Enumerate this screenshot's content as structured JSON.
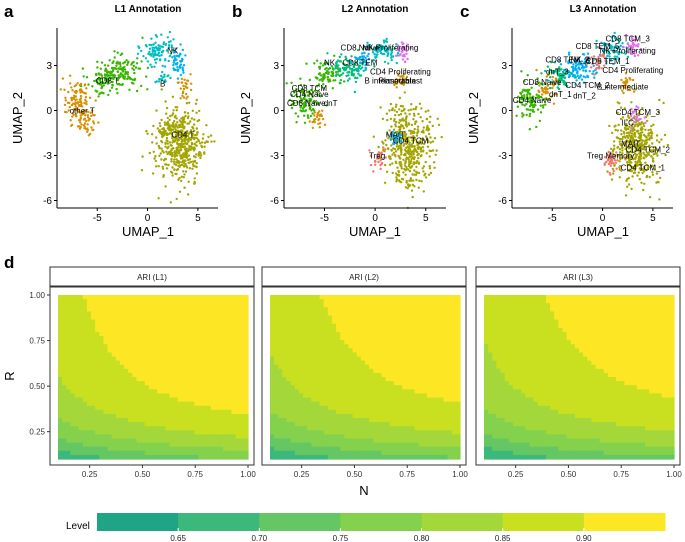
{
  "panel_letters": [
    "a",
    "b",
    "c",
    "d"
  ],
  "umap_axis": {
    "xlabel": "UMAP_1",
    "ylabel": "UMAP_2",
    "xticks": [
      -5,
      0,
      5
    ],
    "yticks": [
      -6,
      -3,
      0,
      3
    ]
  },
  "colors": {
    "cd4t": "#a3a500",
    "b": "#00bfc4",
    "nk": "#00b0f6",
    "cd8t": "#39b600",
    "othert": "#d89000",
    "mono": "#e76bf3",
    "treg": "#f8766d",
    "ccc": "#00bf7d"
  },
  "chart_data": [
    {
      "type": "scatter",
      "title": "L1 Annotation",
      "xlabel": "UMAP_1",
      "ylabel": "UMAP_2",
      "xlim": [
        -9,
        7
      ],
      "ylim": [
        -6.5,
        5.5
      ],
      "annotations": [
        {
          "text": "NK",
          "x": 2.5,
          "y": 3.8
        },
        {
          "text": "CD8 T",
          "x": -4.0,
          "y": 1.8
        },
        {
          "text": "B",
          "x": 1.5,
          "y": 1.6
        },
        {
          "text": "other T",
          "x": -6.5,
          "y": -0.2
        },
        {
          "text": "CD4 T",
          "x": 3.5,
          "y": -1.8
        }
      ]
    },
    {
      "type": "scatter",
      "title": "L2 Annotation",
      "xlabel": "UMAP_1",
      "ylabel": "UMAP_2",
      "xlim": [
        -9,
        7
      ],
      "ylim": [
        -6.5,
        5.5
      ],
      "annotations": [
        {
          "text": "CD8 Naive",
          "x": -1.5,
          "y": 4.0
        },
        {
          "text": "NK Proliferating",
          "x": 1.5,
          "y": 4.0
        },
        {
          "text": "NK",
          "x": -4.5,
          "y": 3.0
        },
        {
          "text": "CD8 TEM",
          "x": -1.5,
          "y": 3.0
        },
        {
          "text": "CD4 Proliferating",
          "x": 2.5,
          "y": 2.4
        },
        {
          "text": "B intermediate",
          "x": 1.5,
          "y": 1.8
        },
        {
          "text": "Plasmablast",
          "x": 2.5,
          "y": 1.8
        },
        {
          "text": "CD8 TCM",
          "x": -6.5,
          "y": 1.3
        },
        {
          "text": "CD4 Naive",
          "x": -6.5,
          "y": 0.9
        },
        {
          "text": "CD8 Naive",
          "x": -6.8,
          "y": 0.3
        },
        {
          "text": "dnT",
          "x": -4.4,
          "y": 0.3
        },
        {
          "text": "MAIT",
          "x": 2.0,
          "y": -1.8
        },
        {
          "text": "CD4 TCM",
          "x": 3.5,
          "y": -2.2
        },
        {
          "text": "Treg",
          "x": 0.2,
          "y": -3.2
        }
      ]
    },
    {
      "type": "scatter",
      "title": "L3 Annotation",
      "xlabel": "UMAP_1",
      "ylabel": "UMAP_2",
      "xlim": [
        -9,
        7
      ],
      "ylim": [
        -6.5,
        5.5
      ],
      "annotations": [
        {
          "text": "CD8 TCM_3",
          "x": 2.5,
          "y": 4.6
        },
        {
          "text": "CD8 TEM_5",
          "x": -0.5,
          "y": 4.1
        },
        {
          "text": "NK Proliferating",
          "x": 2.5,
          "y": 3.8
        },
        {
          "text": "CD8 TEM_2",
          "x": -3.5,
          "y": 3.2
        },
        {
          "text": "NK_4",
          "x": -2.2,
          "y": 3.2
        },
        {
          "text": "CD8 TEM_1",
          "x": 0.5,
          "y": 3.1
        },
        {
          "text": "CD4 Proliferating",
          "x": 3.0,
          "y": 2.5
        },
        {
          "text": "dnT_3",
          "x": -4.5,
          "y": 2.4
        },
        {
          "text": "CD8 Naive",
          "x": -6.0,
          "y": 1.7
        },
        {
          "text": "CD4 TCM_2",
          "x": -1.5,
          "y": 1.5
        },
        {
          "text": "B intermediate",
          "x": 2.0,
          "y": 1.4
        },
        {
          "text": "dnT_1",
          "x": -4.2,
          "y": 0.9
        },
        {
          "text": "CD4 Naive",
          "x": -7.0,
          "y": 0.5
        },
        {
          "text": "dnT_2",
          "x": -1.8,
          "y": 0.8
        },
        {
          "text": "CD4 TCM_3",
          "x": 3.5,
          "y": -0.3
        },
        {
          "text": "ILC",
          "x": 2.5,
          "y": -1.0
        },
        {
          "text": "MAIT",
          "x": 2.8,
          "y": -2.4
        },
        {
          "text": "CD4 TCM_2",
          "x": 4.5,
          "y": -2.8
        },
        {
          "text": "Treg Memory",
          "x": 0.8,
          "y": -3.2
        },
        {
          "text": "CD4 TCM_1",
          "x": 4.0,
          "y": -4.0
        }
      ]
    },
    {
      "type": "heatmap",
      "facets": [
        "ARI (L1)",
        "ARI (L2)",
        "ARI (L3)"
      ],
      "xlabel": "N",
      "ylabel": "R",
      "xlim": [
        0.1,
        1.0
      ],
      "ylim": [
        0.1,
        1.0
      ],
      "xticks": [
        "0.25",
        "0.50",
        "0.75",
        "1.00"
      ],
      "yticks": [
        "0.25",
        "0.50",
        "0.75",
        "1.00"
      ],
      "legend": {
        "title": "Level",
        "position": "bottom",
        "breaks": [
          "0.65",
          "0.70",
          "0.75",
          "0.80",
          "0.85",
          "0.90"
        ],
        "colors": [
          "#20a486",
          "#3cb97a",
          "#64c763",
          "#84d14d",
          "#a4d83a",
          "#c9e020",
          "#fde725"
        ]
      },
      "contours": [
        {
          "facet": "ARI (L1)",
          "levels": [
            0.75,
            0.8,
            0.85,
            0.9
          ]
        },
        {
          "facet": "ARI (L2)",
          "levels": [
            0.75,
            0.8,
            0.85
          ]
        },
        {
          "facet": "ARI (L3)",
          "levels": [
            0.75,
            0.8,
            0.85
          ]
        }
      ]
    }
  ]
}
